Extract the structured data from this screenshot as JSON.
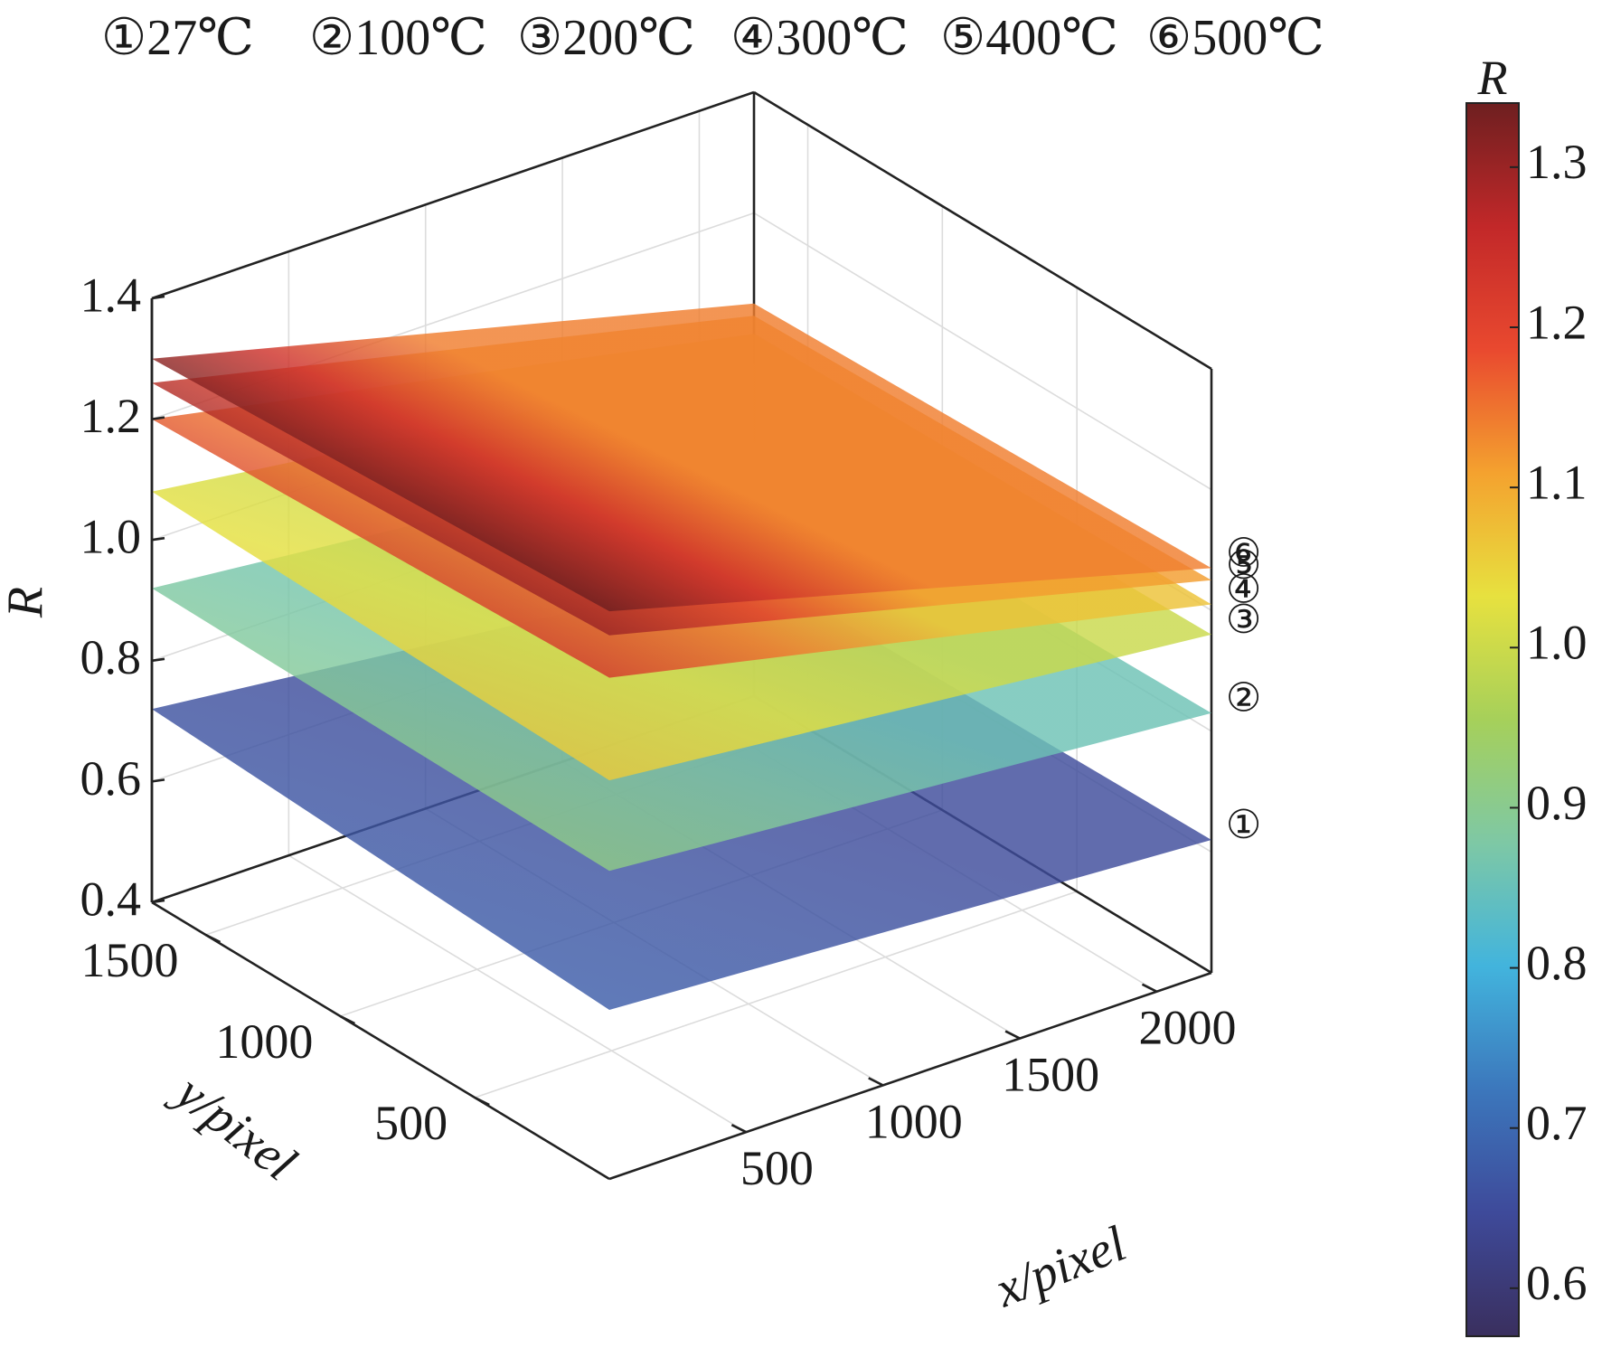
{
  "chart_data": {
    "type": "surface3d",
    "legend": [
      {
        "marker": "①",
        "label": "27℃"
      },
      {
        "marker": "②",
        "label": "100℃"
      },
      {
        "marker": "③",
        "label": "200℃"
      },
      {
        "marker": "④",
        "label": "300℃"
      },
      {
        "marker": "⑤",
        "label": "400℃"
      },
      {
        "marker": "⑥",
        "label": "500℃"
      }
    ],
    "axes": {
      "x": {
        "label": "x/pixel",
        "ticks": [
          500,
          1000,
          1500,
          2000
        ],
        "range": [
          0,
          2200
        ]
      },
      "y": {
        "label": "y/pixel",
        "ticks": [
          500,
          1000,
          1500
        ],
        "range": [
          0,
          1700
        ]
      },
      "z": {
        "label": "R",
        "ticks": [
          "0.4",
          "0.6",
          "0.8",
          "1.0",
          "1.2",
          "1.4"
        ],
        "range": [
          0.4,
          1.4
        ]
      }
    },
    "grid": true,
    "surfaces": [
      {
        "marker": "①",
        "label": "27℃",
        "corners": {
          "x0y0": 0.68,
          "x1y0": 0.62,
          "x0y1": 0.72,
          "x1y1": 0.61
        }
      },
      {
        "marker": "②",
        "label": "100℃",
        "corners": {
          "x0y0": 0.91,
          "x1y0": 0.83,
          "x0y1": 0.92,
          "x1y1": 0.82
        }
      },
      {
        "marker": "③",
        "label": "200℃",
        "corners": {
          "x0y0": 1.06,
          "x1y0": 0.96,
          "x0y1": 1.08,
          "x1y1": 0.95
        }
      },
      {
        "marker": "④",
        "label": "300℃",
        "corners": {
          "x0y0": 1.23,
          "x1y0": 1.01,
          "x0y1": 1.2,
          "x1y1": 1.0
        }
      },
      {
        "marker": "⑤",
        "label": "400℃",
        "corners": {
          "x0y0": 1.3,
          "x1y0": 1.05,
          "x0y1": 1.26,
          "x1y1": 1.03
        }
      },
      {
        "marker": "⑥",
        "label": "500℃",
        "corners": {
          "x0y0": 1.34,
          "x1y0": 1.07,
          "x0y1": 1.3,
          "x1y1": 1.05
        }
      }
    ],
    "colorbar": {
      "label": "R",
      "range": [
        0.57,
        1.34
      ],
      "ticks": [
        "0.6",
        "0.7",
        "0.8",
        "0.9",
        "1.0",
        "1.1",
        "1.2",
        "1.3"
      ],
      "colors": [
        "#3a2f5e",
        "#3e4a9a",
        "#3c77bc",
        "#42b4dd",
        "#7ec8a5",
        "#a6d05a",
        "#e7e13f",
        "#f4a22f",
        "#e9492f",
        "#c22829",
        "#6e1f20"
      ]
    }
  }
}
